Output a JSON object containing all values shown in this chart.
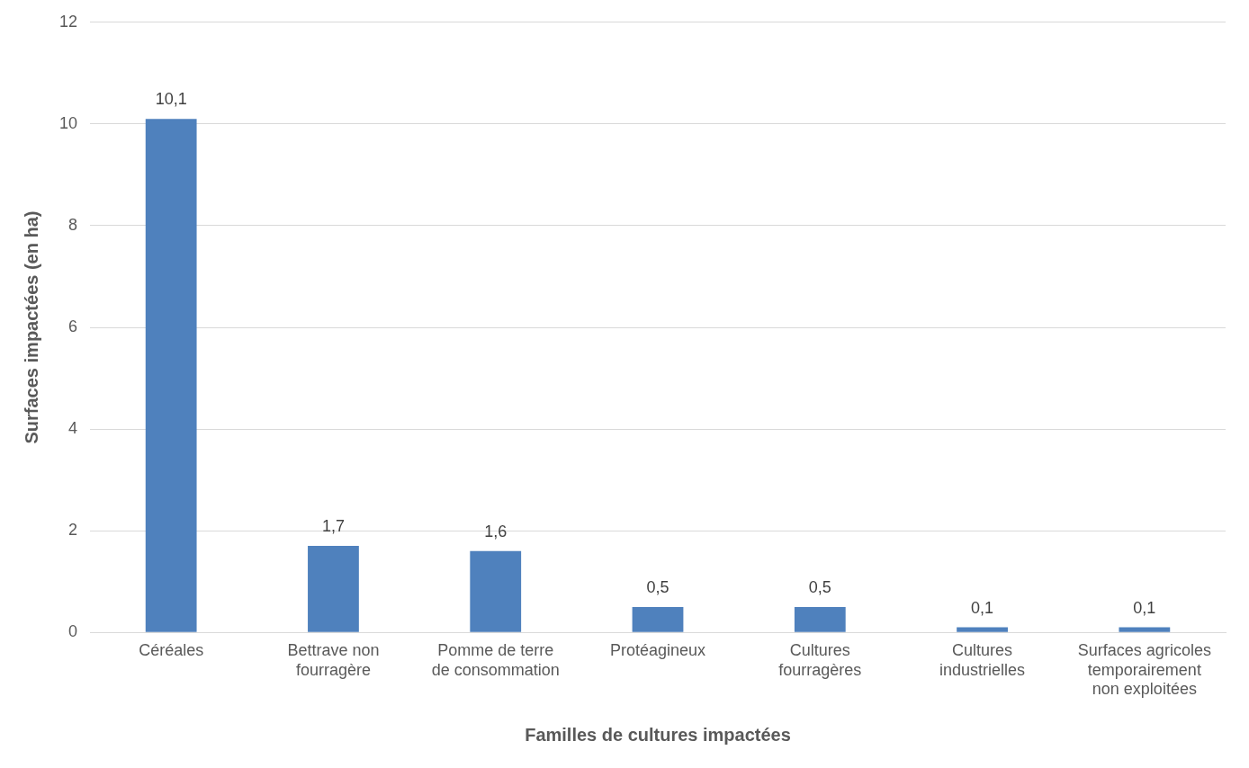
{
  "chart_data": {
    "type": "bar",
    "xlabel": "Familles de cultures impactées",
    "ylabel": "Surfaces impactées (en ha)",
    "categories": [
      "Céréales",
      "Bettrave non fourragère",
      "Pomme de terre de consommation",
      "Protéagineux",
      "Cultures fourragères",
      "Cultures industrielles",
      "Surfaces agricoles temporairement non exploitées"
    ],
    "values": [
      10.1,
      1.7,
      1.6,
      0.5,
      0.5,
      0.1,
      0.1
    ],
    "value_labels": [
      "10,1",
      "1,7",
      "1,6",
      "0,5",
      "0,5",
      "0,1",
      "0,1"
    ],
    "color": "#4f81bd",
    "ylim": [
      0,
      12
    ],
    "yticks": [
      0,
      2,
      4,
      6,
      8,
      10,
      12
    ],
    "grid": "y",
    "legend": false
  }
}
